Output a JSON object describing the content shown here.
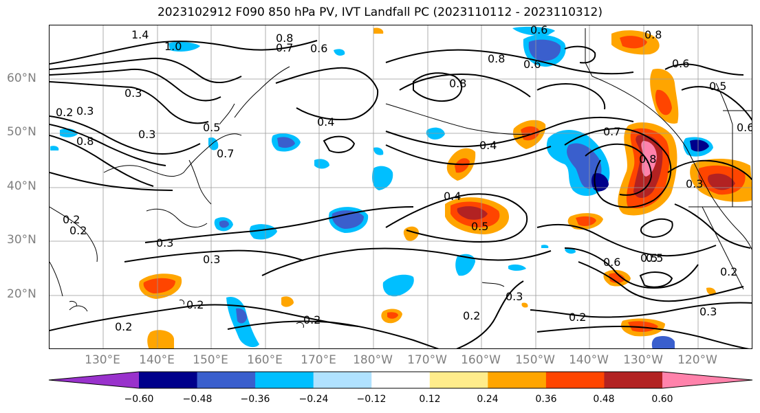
{
  "title": "2023102912 F090 850 hPa PV, IVT Landfall PC (2023110112 - 2023110312)",
  "lat_labels": [
    {
      "text": "60°N"
    },
    {
      "text": "50°N"
    },
    {
      "text": "40°N"
    },
    {
      "text": "30°N"
    },
    {
      "text": "20°N"
    }
  ],
  "lon_labels": [
    {
      "text": "130°E"
    },
    {
      "text": "140°E"
    },
    {
      "text": "150°E"
    },
    {
      "text": "160°E"
    },
    {
      "text": "170°E"
    },
    {
      "text": "180°W"
    },
    {
      "text": "170°W"
    },
    {
      "text": "160°W"
    },
    {
      "text": "150°W"
    },
    {
      "text": "140°W"
    },
    {
      "text": "130°W"
    },
    {
      "text": "120°W"
    }
  ],
  "colorbar": {
    "ticks": [
      "−0.60",
      "−0.48",
      "−0.36",
      "−0.24",
      "−0.12",
      "0.12",
      "0.24",
      "0.36",
      "0.48",
      "0.60"
    ],
    "colors": [
      "#9932cc",
      "#00008b",
      "#3a5fcd",
      "#00bfff",
      "#b0e2ff",
      "#ffffff",
      "#ffec8b",
      "#ffa500",
      "#ff4500",
      "#b22222",
      "#ff82ab"
    ],
    "extend": "both"
  },
  "contour_labels": [
    {
      "text": "1.4"
    },
    {
      "text": "1.0"
    },
    {
      "text": "0.8"
    },
    {
      "text": "0.7"
    },
    {
      "text": "0.6"
    },
    {
      "text": "0.6"
    },
    {
      "text": "0.8"
    },
    {
      "text": "0.6"
    },
    {
      "text": "0.8"
    },
    {
      "text": "0.6"
    },
    {
      "text": "0.5"
    },
    {
      "text": "0.4"
    },
    {
      "text": "0.4"
    },
    {
      "text": "0.3"
    },
    {
      "text": "0.3"
    },
    {
      "text": "0.8"
    },
    {
      "text": "0.5"
    },
    {
      "text": "0.7"
    },
    {
      "text": "0.4"
    },
    {
      "text": "0.5"
    },
    {
      "text": "0.7"
    },
    {
      "text": "0.8"
    },
    {
      "text": "0.3"
    },
    {
      "text": "0.2"
    },
    {
      "text": "0.3"
    },
    {
      "text": "0.3"
    },
    {
      "text": "0.6"
    },
    {
      "text": "0.5"
    },
    {
      "text": "0.2"
    },
    {
      "text": "0.3"
    },
    {
      "text": "0.2"
    },
    {
      "text": "0.2"
    },
    {
      "text": "0.2"
    },
    {
      "text": "0.2"
    },
    {
      "text": "0.3"
    },
    {
      "text": "0.2"
    },
    {
      "text": "0.2"
    },
    {
      "text": "0.6"
    },
    {
      "text": "0.3"
    },
    {
      "text": "0.2"
    },
    {
      "text": "0.8"
    },
    {
      "text": "0.5"
    }
  ]
}
